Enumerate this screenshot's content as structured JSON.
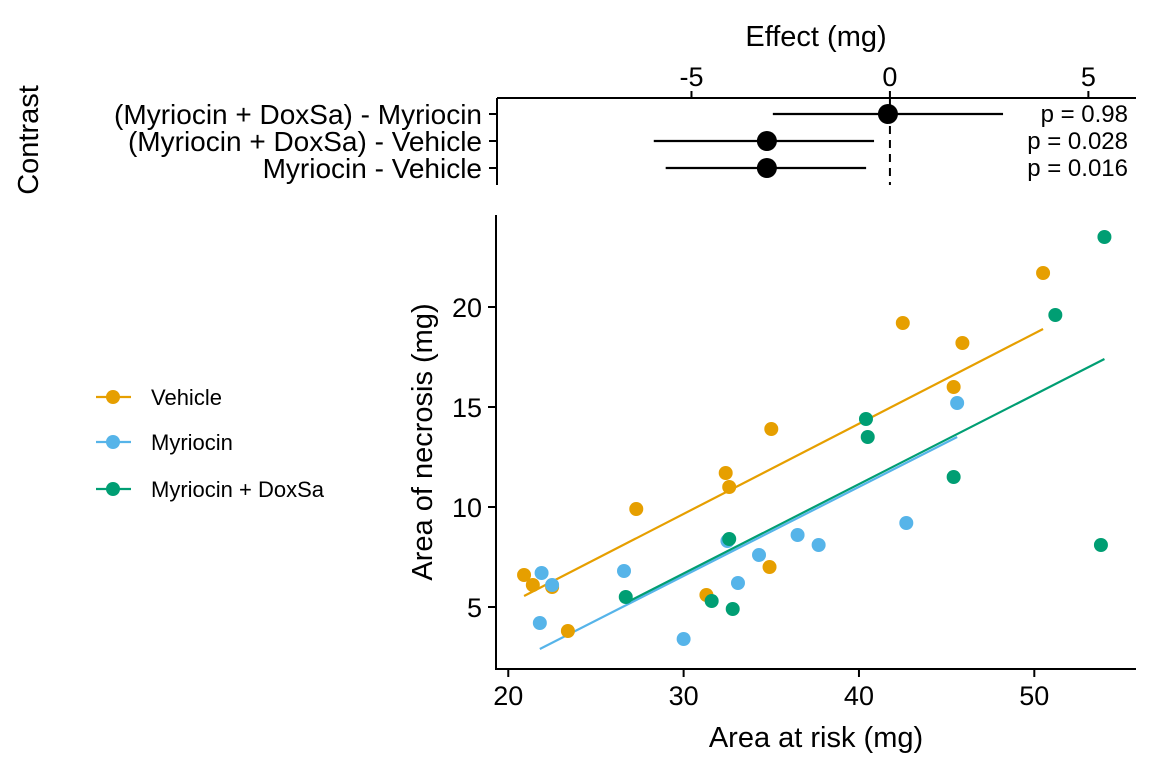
{
  "chart_data": [
    {
      "type": "forest",
      "xlabel": "Effect (mg)",
      "ylabel": "Contrast",
      "xlim": [
        -9.9,
        6.2
      ],
      "xticks": [
        -5,
        0,
        5
      ],
      "xtick_labels": [
        "-5",
        "0",
        "5"
      ],
      "reference_line": 0,
      "contrasts": [
        {
          "label": "(Myriocin + DoxSa) - Myriocin",
          "estimate": -0.05,
          "ci": [
            -2.95,
            2.85
          ],
          "p_label": "p =  0.98"
        },
        {
          "label": "(Myriocin + DoxSa) - Vehicle",
          "estimate": -3.1,
          "ci": [
            -5.95,
            -0.4
          ],
          "p_label": "p =  0.028"
        },
        {
          "label": "Myriocin - Vehicle",
          "estimate": -3.1,
          "ci": [
            -5.65,
            -0.6
          ],
          "p_label": "p =  0.016"
        }
      ]
    },
    {
      "type": "scatter",
      "xlabel": "Area at risk (mg)",
      "ylabel": "Area of necrosis (mg)",
      "xlim": [
        19.3,
        55.8
      ],
      "ylim": [
        1.9,
        24.6
      ],
      "xticks": [
        20,
        30,
        40,
        50
      ],
      "yticks": [
        5,
        10,
        15,
        20
      ],
      "legend": "left",
      "series": [
        {
          "name": "Vehicle",
          "color": "#E69F00",
          "points": [
            [
              20.9,
              6.6
            ],
            [
              21.4,
              6.1
            ],
            [
              22.5,
              6.0
            ],
            [
              23.4,
              3.8
            ],
            [
              27.3,
              9.9
            ],
            [
              31.3,
              5.6
            ],
            [
              32.4,
              11.7
            ],
            [
              32.6,
              11.0
            ],
            [
              34.9,
              7.0
            ],
            [
              35.0,
              13.9
            ],
            [
              42.5,
              19.2
            ],
            [
              45.4,
              16.0
            ],
            [
              45.9,
              18.2
            ],
            [
              50.5,
              21.7
            ]
          ],
          "fit": [
            [
              20.9,
              5.55
            ],
            [
              50.5,
              18.9
            ]
          ]
        },
        {
          "name": "Myriocin",
          "color": "#56B4E9",
          "points": [
            [
              21.8,
              4.2
            ],
            [
              21.9,
              6.7
            ],
            [
              22.5,
              6.1
            ],
            [
              26.6,
              6.8
            ],
            [
              30.0,
              3.4
            ],
            [
              32.5,
              8.3
            ],
            [
              33.1,
              6.2
            ],
            [
              34.3,
              7.6
            ],
            [
              36.5,
              8.6
            ],
            [
              37.7,
              8.1
            ],
            [
              42.7,
              9.2
            ],
            [
              45.6,
              15.2
            ]
          ],
          "fit": [
            [
              21.8,
              2.9
            ],
            [
              45.6,
              13.5
            ]
          ]
        },
        {
          "name": "Myriocin + DoxSa",
          "color": "#009E73",
          "points": [
            [
              26.7,
              5.5
            ],
            [
              31.6,
              5.3
            ],
            [
              32.6,
              8.4
            ],
            [
              32.8,
              4.9
            ],
            [
              40.4,
              14.4
            ],
            [
              40.5,
              13.5
            ],
            [
              45.4,
              11.5
            ],
            [
              51.2,
              19.6
            ],
            [
              53.8,
              8.1
            ],
            [
              54.0,
              23.5
            ]
          ],
          "fit": [
            [
              26.7,
              5.2
            ],
            [
              54.0,
              17.4
            ]
          ]
        }
      ]
    }
  ]
}
